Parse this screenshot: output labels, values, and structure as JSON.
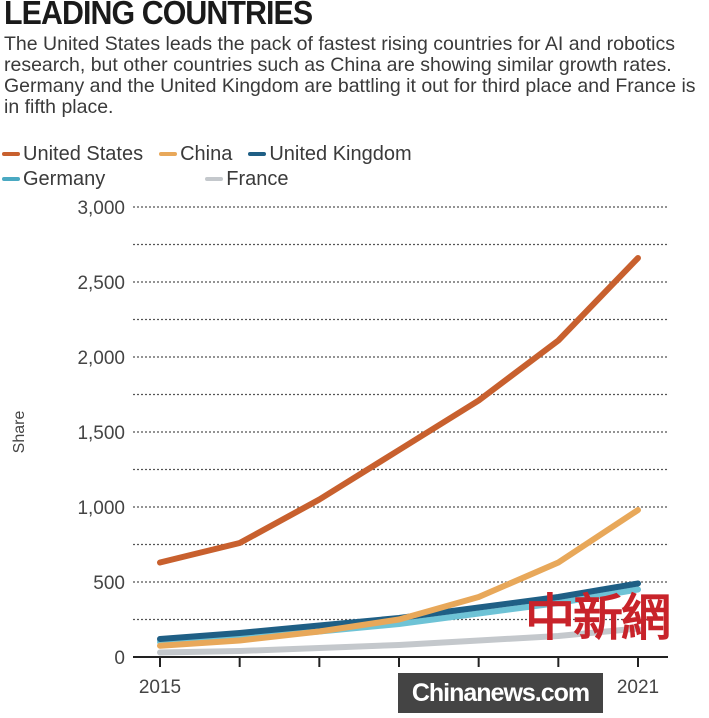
{
  "chart_data": {
    "type": "line",
    "title": "LEADING COUNTRIES",
    "subtitle": "The United States leads the pack of fastest rising countries for AI and robotics research, but other countries such as China are showing similar growth rates. Germany and the United Kingdom are battling it out for third place and France is in fifth place.",
    "ylabel": "Share",
    "xlabel": "",
    "x": [
      2015,
      2016,
      2017,
      2018,
      2019,
      2020,
      2021
    ],
    "x_tick_labels": [
      "2015",
      "",
      "",
      "",
      "",
      "",
      "2021"
    ],
    "ylim": [
      0,
      3000
    ],
    "y_ticks": [
      0,
      500,
      1000,
      1500,
      2000,
      2500,
      3000
    ],
    "y_tick_labels": [
      "0",
      "500",
      "1,000",
      "1,500",
      "2,000",
      "2,500",
      "3,000"
    ],
    "grid": "dotted horizontal every 250",
    "legend_placement": "top",
    "series": [
      {
        "name": "United States",
        "color": "#c8602e",
        "values": [
          630,
          760,
          1050,
          1380,
          1710,
          2110,
          2660
        ]
      },
      {
        "name": "China",
        "color": "#e8a85a",
        "values": [
          75,
          110,
          170,
          250,
          400,
          630,
          980
        ]
      },
      {
        "name": "United Kingdom",
        "color": "#1f5f85",
        "values": [
          120,
          160,
          210,
          260,
          330,
          400,
          490
        ]
      },
      {
        "name": "Germany",
        "color": "#6ec3d6",
        "values": [
          100,
          130,
          170,
          220,
          290,
          360,
          450
        ]
      },
      {
        "name": "France",
        "color": "#c4c8cc",
        "values": [
          30,
          40,
          60,
          80,
          110,
          140,
          190
        ]
      }
    ]
  },
  "watermark": {
    "chinese": "中新網",
    "latin": "Chinanews.com"
  }
}
